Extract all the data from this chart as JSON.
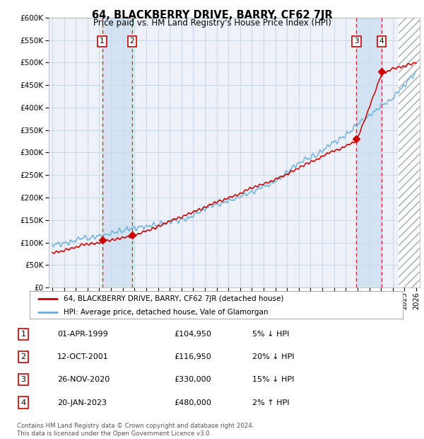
{
  "title": "64, BLACKBERRY DRIVE, BARRY, CF62 7JR",
  "subtitle": "Price paid vs. HM Land Registry's House Price Index (HPI)",
  "ytick_values": [
    0,
    50000,
    100000,
    150000,
    200000,
    250000,
    300000,
    350000,
    400000,
    450000,
    500000,
    550000,
    600000
  ],
  "xmin": 1994.7,
  "xmax": 2026.3,
  "ymin": 0,
  "ymax": 600000,
  "legend_line1": "64, BLACKBERRY DRIVE, BARRY, CF62 7JR (detached house)",
  "legend_line2": "HPI: Average price, detached house, Vale of Glamorgan",
  "transactions": [
    {
      "num": 1,
      "date": "01-APR-1999",
      "price": 104950,
      "year": 1999.25,
      "pct": "5%",
      "dir": "↓"
    },
    {
      "num": 2,
      "date": "12-OCT-2001",
      "price": 116950,
      "year": 2001.79,
      "pct": "20%",
      "dir": "↓"
    },
    {
      "num": 3,
      "date": "26-NOV-2020",
      "price": 330000,
      "year": 2020.91,
      "pct": "15%",
      "dir": "↓"
    },
    {
      "num": 4,
      "date": "20-JAN-2023",
      "price": 480000,
      "year": 2023.05,
      "pct": "2%",
      "dir": "↑"
    }
  ],
  "footer_line1": "Contains HM Land Registry data © Crown copyright and database right 2024.",
  "footer_line2": "This data is licensed under the Open Government Licence v3.0.",
  "hpi_color": "#6baed6",
  "price_color": "#cc0000",
  "box_color": "#cc0000",
  "grid_color": "#c8d8e8",
  "background_plot": "#eef2f8",
  "shade_color": "#c8ddf0"
}
